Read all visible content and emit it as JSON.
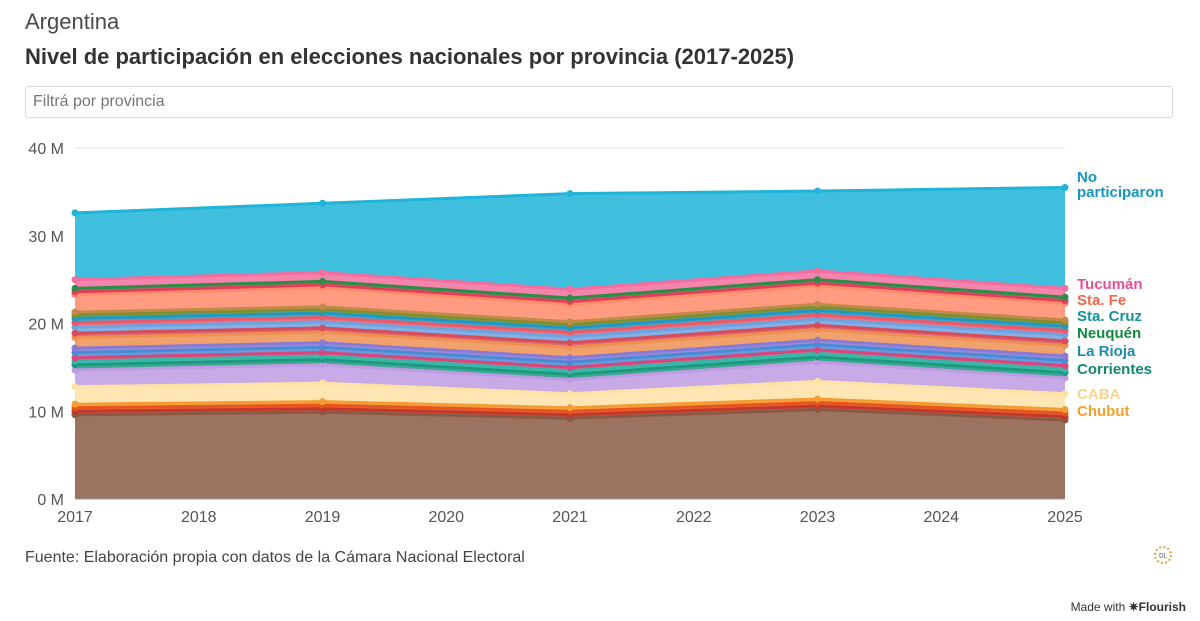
{
  "header": {
    "supertitle": "Argentina",
    "title": "Nivel de participación en elecciones nacionales por provincia (2017-2025)"
  },
  "filter": {
    "placeholder": "Filtrá por provincia"
  },
  "footer": {
    "source": "Fuente: Elaboración propia con datos de la Cámara Nacional Electoral",
    "made_with": "Made with",
    "brand": "✷Flourish"
  },
  "chart_data": {
    "type": "area",
    "stacked": true,
    "x": [
      2017,
      2019,
      2021,
      2023,
      2025
    ],
    "x_ticks": [
      "2017",
      "2018",
      "2019",
      "2020",
      "2021",
      "2022",
      "2023",
      "2024",
      "2025"
    ],
    "y_ticks": [
      "0 M",
      "10 M",
      "20 M",
      "30 M",
      "40 M"
    ],
    "ylim": [
      0,
      40
    ],
    "y_unit": "M",
    "grid": true,
    "series": [
      {
        "color": "#8a5a44",
        "values": [
          9.6,
          9.9,
          9.2,
          10.2,
          9.0
        ]
      },
      {
        "color": "#c0392b",
        "values": [
          0.4,
          0.4,
          0.4,
          0.4,
          0.4
        ]
      },
      {
        "color": "#e8541e",
        "values": [
          0.4,
          0.4,
          0.4,
          0.4,
          0.4
        ]
      },
      {
        "color": "#f39c34",
        "values": [
          0.4,
          0.4,
          0.4,
          0.4,
          0.4
        ],
        "name": "Chubut",
        "label_color": "#f4a02d"
      },
      {
        "color": "#fde2a6",
        "values": [
          2.0,
          2.1,
          1.6,
          2.0,
          1.8
        ],
        "name": "CABA",
        "label_color": "#fbd38b"
      },
      {
        "color": "#be9be2",
        "values": [
          1.9,
          2.1,
          1.6,
          2.2,
          1.8
        ]
      },
      {
        "color": "#1b9a7f",
        "values": [
          0.6,
          0.6,
          0.6,
          0.6,
          0.6
        ],
        "name": "Corrientes",
        "label_color": "#12886f"
      },
      {
        "color": "#35b6a6",
        "values": [
          0.4,
          0.4,
          0.4,
          0.4,
          0.4
        ]
      },
      {
        "color": "#d8467c",
        "values": [
          0.4,
          0.4,
          0.4,
          0.4,
          0.4
        ]
      },
      {
        "color": "#4b8bd4",
        "values": [
          0.6,
          0.6,
          0.6,
          0.6,
          0.6
        ],
        "name": "La Rioja",
        "label_color": "#1f8ab3"
      },
      {
        "color": "#8a7ad6",
        "values": [
          0.5,
          0.5,
          0.5,
          0.5,
          0.5
        ]
      },
      {
        "color": "#ee9052",
        "values": [
          1.2,
          1.2,
          1.2,
          1.2,
          1.2
        ]
      },
      {
        "color": "#d94c5a",
        "values": [
          0.5,
          0.5,
          0.5,
          0.5,
          0.5
        ]
      },
      {
        "color": "#6fa3e0",
        "values": [
          0.7,
          0.7,
          0.7,
          0.7,
          0.7
        ]
      },
      {
        "color": "#ea5a6a",
        "values": [
          0.5,
          0.5,
          0.5,
          0.5,
          0.5
        ]
      },
      {
        "color": "#1f99c0",
        "values": [
          0.5,
          0.5,
          0.5,
          0.5,
          0.5
        ],
        "name": "Sta. Cruz",
        "label_color": "#14939c"
      },
      {
        "color": "#7d8f2e",
        "values": [
          0.4,
          0.4,
          0.4,
          0.4,
          0.4
        ]
      },
      {
        "color": "#c08a48",
        "values": [
          0.3,
          0.3,
          0.3,
          0.3,
          0.3
        ]
      },
      {
        "color": "#ff8a6a",
        "values": [
          2.0,
          2.2,
          2.0,
          2.1,
          1.9
        ],
        "name": "Sta. Fe",
        "label_color": "#f2654a"
      },
      {
        "color": "#e0405a",
        "values": [
          0.3,
          0.3,
          0.3,
          0.3,
          0.3
        ]
      },
      {
        "color": "#2e8b48",
        "values": [
          0.4,
          0.4,
          0.4,
          0.4,
          0.4
        ],
        "name": "Neuquén",
        "label_color": "#0f8a3c"
      },
      {
        "color": "#f36e9e",
        "values": [
          1.0,
          1.0,
          1.0,
          1.0,
          1.0
        ],
        "name": "Tucumán",
        "label_color": "#ea4f93"
      },
      {
        "color": "#1fb4d8",
        "values": [
          7.6,
          7.9,
          10.9,
          9.1,
          11.5
        ],
        "name": "No participaron",
        "label_color": "#1597c2"
      }
    ]
  }
}
